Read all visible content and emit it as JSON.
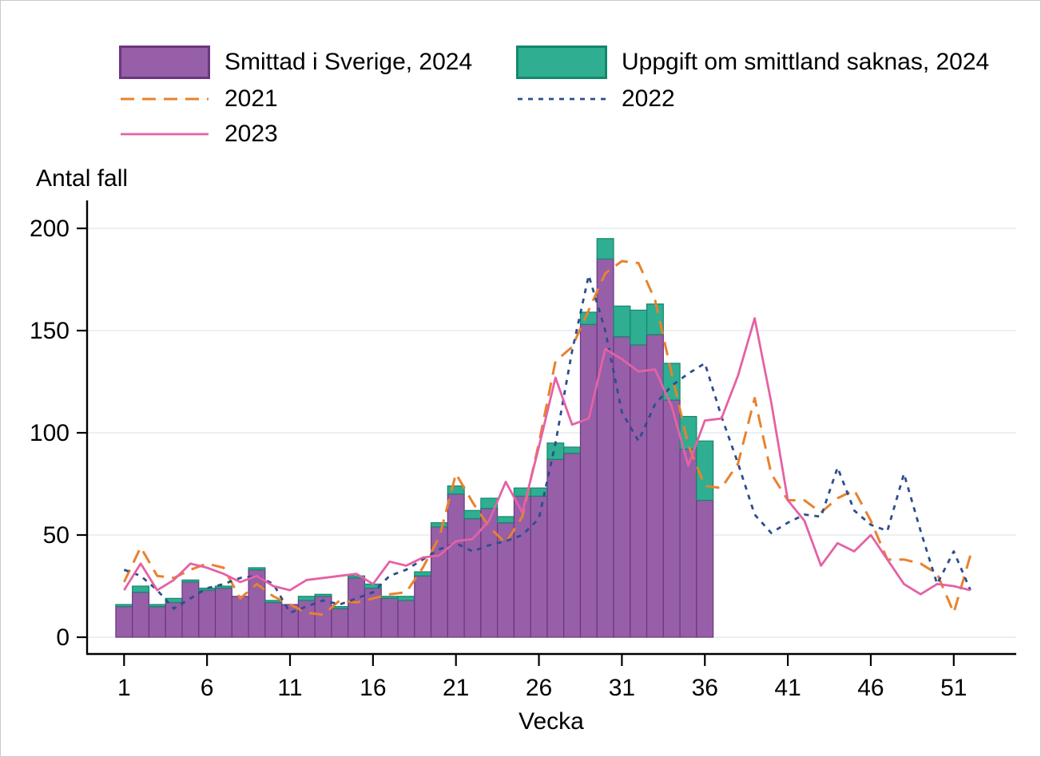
{
  "chart_data": {
    "type": "bar+line",
    "title": "",
    "ylabel": "Antal fall",
    "xlabel": "Vecka",
    "ylim": [
      0,
      200
    ],
    "yticks": [
      0,
      50,
      100,
      150,
      200
    ],
    "xticks": [
      1,
      6,
      11,
      16,
      21,
      26,
      31,
      36,
      41,
      46,
      51
    ],
    "grid": "horizontal-light",
    "legend_position": "top",
    "x": [
      1,
      2,
      3,
      4,
      5,
      6,
      7,
      8,
      9,
      10,
      11,
      12,
      13,
      14,
      15,
      16,
      17,
      18,
      19,
      20,
      21,
      22,
      23,
      24,
      25,
      26,
      27,
      28,
      29,
      30,
      31,
      32,
      33,
      34,
      35,
      36,
      37,
      38,
      39,
      40,
      41,
      42,
      43,
      44,
      45,
      46,
      47,
      48,
      49,
      50,
      51,
      52
    ],
    "series": [
      {
        "name": "Smittad i Sverige, 2024",
        "type": "bar-stack",
        "color": "#965fa8",
        "stroke": "#6d3580",
        "values": [
          15,
          22,
          15,
          17,
          27,
          23,
          24,
          20,
          33,
          17,
          16,
          18,
          20,
          14,
          29,
          24,
          19,
          18,
          30,
          54,
          70,
          58,
          63,
          56,
          69,
          69,
          87,
          90,
          153,
          185,
          147,
          143,
          148,
          116,
          92,
          67
        ]
      },
      {
        "name": "Uppgift om smittland saknas, 2024",
        "type": "bar-stack",
        "color": "#2fae92",
        "stroke": "#14876c",
        "values": [
          1,
          3,
          1,
          2,
          1,
          1,
          1,
          0,
          1,
          1,
          0,
          2,
          1,
          1,
          1,
          2,
          1,
          2,
          2,
          2,
          4,
          4,
          5,
          3,
          4,
          4,
          8,
          3,
          6,
          10,
          15,
          17,
          15,
          18,
          16,
          29
        ]
      },
      {
        "name": "2021",
        "type": "line",
        "style": "dashed",
        "dash": "17 10",
        "width": 3,
        "color": "#e8822e",
        "values": [
          27,
          44,
          30,
          29,
          33,
          36,
          34,
          19,
          26,
          20,
          16,
          12,
          11,
          18,
          17,
          19,
          21,
          22,
          34,
          49,
          80,
          66,
          54,
          46,
          59,
          95,
          135,
          142,
          160,
          178,
          184,
          183,
          165,
          129,
          94,
          74,
          73,
          85,
          117,
          80,
          67,
          67,
          61,
          68,
          72,
          57,
          38,
          38,
          36,
          31,
          12,
          40
        ]
      },
      {
        "name": "2022",
        "type": "line",
        "style": "dotted",
        "dash": "6 7",
        "width": 2.8,
        "color": "#2d4d8e",
        "values": [
          33,
          30,
          23,
          14,
          19,
          24,
          26,
          29,
          30,
          26,
          12,
          15,
          18,
          16,
          19,
          22,
          30,
          33,
          38,
          43,
          46,
          42,
          45,
          47,
          50,
          58,
          95,
          140,
          177,
          150,
          110,
          96,
          114,
          123,
          129,
          134,
          108,
          85,
          60,
          51,
          56,
          60,
          59,
          83,
          62,
          55,
          52,
          80,
          52,
          26,
          42,
          23
        ]
      },
      {
        "name": "2023",
        "type": "line",
        "style": "solid",
        "dash": "",
        "width": 2.8,
        "color": "#e561a4",
        "values": [
          23,
          36,
          23,
          28,
          36,
          34,
          31,
          27,
          30,
          25,
          23,
          28,
          29,
          30,
          31,
          26,
          37,
          35,
          39,
          40,
          47,
          48,
          57,
          76,
          61,
          93,
          127,
          104,
          107,
          141,
          136,
          130,
          131,
          113,
          84,
          106,
          107,
          128,
          156,
          115,
          67,
          57,
          35,
          46,
          42,
          50,
          38,
          26,
          21,
          26,
          25,
          23
        ]
      }
    ],
    "axis_color": "#000000",
    "grid_color": "#e4ecef",
    "background": "#ffffff"
  }
}
